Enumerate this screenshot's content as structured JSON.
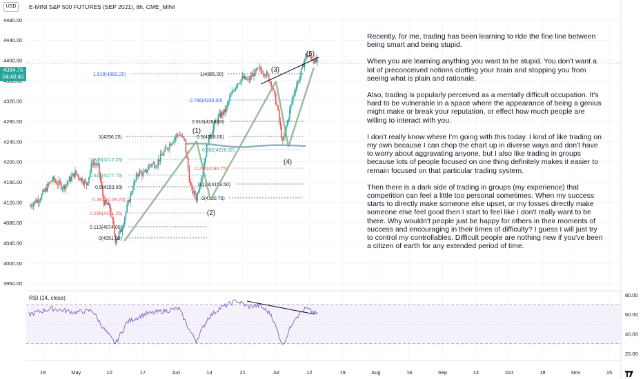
{
  "header": {
    "currency_badge": "USD",
    "symbol_title": "E-MINI S&P 500 FUTURES (SEP 2021), 8h, CME_MINI"
  },
  "price_tag": {
    "price": "4394.75",
    "countdown": "04:40:40"
  },
  "rsi_title": "RSI (14, close)",
  "colors": {
    "up": "#26a69a",
    "down": "#ef5350",
    "rsi_line": "#7e57c2",
    "rsi_band": "#ede7f6",
    "fib_label": "#2962ff",
    "trend_line": "#8fae8b",
    "support_line": "#7fa9b8"
  },
  "note": {
    "paragraphs": [
      "Recently, for me, trading has been learning to ride the fine line between being smart and being stupid.",
      "When you are learning anything you want to be stupid. You don't want a lot of preconceived notions clotting your brain and stopping you from seeing what is plain and rationale.",
      "Also, trading is popularly perceived as a mentally difficult occupation. It's hard to be vulnerable in a space where the appearance of being a genius might make or break your reputation, or effect how much people are willing to interact with you.",
      "I don't really know where I'm going with this today. I kind of like trading on my own because I can chop the chart up in diverse ways and don't have to worry about aggravating anyone, but I also like trading in groups because lots of people focused on one thing definitely makes it easier to remain focused on that particular trading system.",
      "Then there is a dark side of trading in groups (my experience) that competition can feel a little too personal sometimes. When my success starts to directly make someone else upset, or my losses directly make someone else feel good then I start to feel like I don't really want to be there. Why wouldn't people just be happy for others in their moments of success and encouraging in their times of difficulty? I guess I will just try to control my controllables. Difficult people are nothing new if you've been a citizen of earth for any extended period of time."
    ]
  },
  "chart_data": [
    {
      "type": "candlestick",
      "title": "E-MINI S&P 500 FUTURES (SEP 2021), 8h, CME_MINI",
      "y_ticks": [
        "4480.00",
        "4440.00",
        "4400.00",
        "4360.00",
        "4320.00",
        "4280.00",
        "4240.00",
        "4200.00",
        "4160.00",
        "4120.00",
        "4080.00",
        "4040.00",
        "4000.00",
        "3960.00"
      ],
      "ylim": [
        3948,
        4492
      ],
      "x_ticks": [
        "19",
        "May",
        "10",
        "17",
        "Jun",
        "14",
        "21",
        "Jul",
        "12",
        "19",
        "Aug",
        "16",
        "Sep",
        "13",
        "Oct",
        "18",
        "Nov",
        "15"
      ],
      "last_price": 4394.75,
      "anchor_points": [
        {
          "x": 0,
          "y": 4112
        },
        {
          "x": 10,
          "y": 4130
        },
        {
          "x": 20,
          "y": 4165
        },
        {
          "x": 30,
          "y": 4150
        },
        {
          "x": 40,
          "y": 4178
        },
        {
          "x": 50,
          "y": 4155
        },
        {
          "x": 55,
          "y": 4200
        },
        {
          "x": 60,
          "y": 4190
        },
        {
          "x": 65,
          "y": 4120
        },
        {
          "x": 70,
          "y": 4110
        },
        {
          "x": 75,
          "y": 4045
        },
        {
          "x": 80,
          "y": 4065
        },
        {
          "x": 85,
          "y": 4110
        },
        {
          "x": 90,
          "y": 4150
        },
        {
          "x": 95,
          "y": 4180
        },
        {
          "x": 100,
          "y": 4175
        },
        {
          "x": 105,
          "y": 4195
        },
        {
          "x": 110,
          "y": 4195
        },
        {
          "x": 115,
          "y": 4212
        },
        {
          "x": 120,
          "y": 4228
        },
        {
          "x": 125,
          "y": 4245
        },
        {
          "x": 130,
          "y": 4256
        },
        {
          "x": 135,
          "y": 4240
        },
        {
          "x": 140,
          "y": 4150
        },
        {
          "x": 145,
          "y": 4128
        },
        {
          "x": 150,
          "y": 4175
        },
        {
          "x": 155,
          "y": 4240
        },
        {
          "x": 160,
          "y": 4270
        },
        {
          "x": 165,
          "y": 4290
        },
        {
          "x": 170,
          "y": 4300
        },
        {
          "x": 175,
          "y": 4330
        },
        {
          "x": 180,
          "y": 4355
        },
        {
          "x": 185,
          "y": 4365
        },
        {
          "x": 190,
          "y": 4360
        },
        {
          "x": 195,
          "y": 4375
        },
        {
          "x": 200,
          "y": 4382
        },
        {
          "x": 205,
          "y": 4375
        },
        {
          "x": 210,
          "y": 4355
        },
        {
          "x": 215,
          "y": 4310
        },
        {
          "x": 220,
          "y": 4236
        },
        {
          "x": 225,
          "y": 4290
        },
        {
          "x": 230,
          "y": 4340
        },
        {
          "x": 235,
          "y": 4370
        },
        {
          "x": 240,
          "y": 4410
        },
        {
          "x": 245,
          "y": 4405
        },
        {
          "x": 250,
          "y": 4395
        }
      ],
      "annotations": {
        "waves": [
          "(1)",
          "(2)",
          "(3)",
          "(4)",
          "(5)"
        ],
        "fib_levels": [
          "1.618(4383.25)",
          "1(4385.00)",
          "0.786(4330.50)",
          "0.618(4288.00)",
          "1(4256.25)",
          "0.5(4258.00)",
          "0.382(4228.00)",
          "0.236(4212.25)",
          "0.236(4190.75)",
          "0.618(4177.75)",
          "0.113(4159.50)",
          "0.5(4153.00)",
          "0(4130.75)",
          "0.382(4129.25)",
          "0.236(4101.25)",
          "0.113(4074.00)",
          "0(4051.00)"
        ]
      }
    },
    {
      "type": "line",
      "title": "RSI (14, close)",
      "y_ticks": [
        "80.00",
        "60.00",
        "40.00",
        "20.00"
      ],
      "ylim": [
        15,
        82
      ],
      "bands": [
        30,
        70
      ],
      "anchor_points": [
        {
          "x": 0,
          "y": 60
        },
        {
          "x": 20,
          "y": 66
        },
        {
          "x": 40,
          "y": 62
        },
        {
          "x": 55,
          "y": 64
        },
        {
          "x": 65,
          "y": 45
        },
        {
          "x": 75,
          "y": 30
        },
        {
          "x": 85,
          "y": 52
        },
        {
          "x": 100,
          "y": 60
        },
        {
          "x": 115,
          "y": 63
        },
        {
          "x": 130,
          "y": 66
        },
        {
          "x": 140,
          "y": 42
        },
        {
          "x": 145,
          "y": 33
        },
        {
          "x": 155,
          "y": 56
        },
        {
          "x": 165,
          "y": 66
        },
        {
          "x": 180,
          "y": 74
        },
        {
          "x": 190,
          "y": 68
        },
        {
          "x": 200,
          "y": 69
        },
        {
          "x": 210,
          "y": 60
        },
        {
          "x": 220,
          "y": 28
        },
        {
          "x": 230,
          "y": 56
        },
        {
          "x": 240,
          "y": 66
        },
        {
          "x": 250,
          "y": 60
        }
      ]
    }
  ]
}
